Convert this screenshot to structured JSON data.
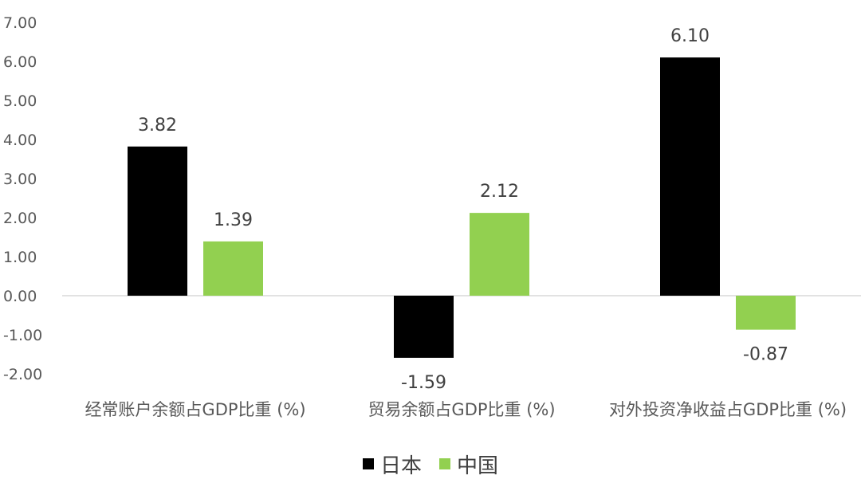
{
  "chart_data": {
    "type": "bar",
    "categories": [
      "经常账户余额占GDP比重 (%)",
      "贸易余额占GDP比重 (%)",
      "对外投资净收益占GDP比重 (%)"
    ],
    "series": [
      {
        "name": "日本",
        "values": [
          3.82,
          -1.59,
          6.1
        ],
        "color": "#000000",
        "labels": [
          "3.82",
          "-1.59",
          "6.10"
        ]
      },
      {
        "name": "中国",
        "values": [
          1.39,
          2.12,
          -0.87
        ],
        "color": "#92D050",
        "labels": [
          "1.39",
          "2.12",
          "-0.87"
        ]
      }
    ],
    "ylim": [
      -2,
      7
    ],
    "yticks": [
      "7.00",
      "6.00",
      "5.00",
      "4.00",
      "3.00",
      "2.00",
      "1.00",
      "0.00",
      "-1.00",
      "-2.00"
    ],
    "ytick_values": [
      7,
      6,
      5,
      4,
      3,
      2,
      1,
      0,
      -1,
      -2
    ],
    "grid": false,
    "legend_position": "bottom",
    "title": "",
    "xlabel": "",
    "ylabel": ""
  }
}
